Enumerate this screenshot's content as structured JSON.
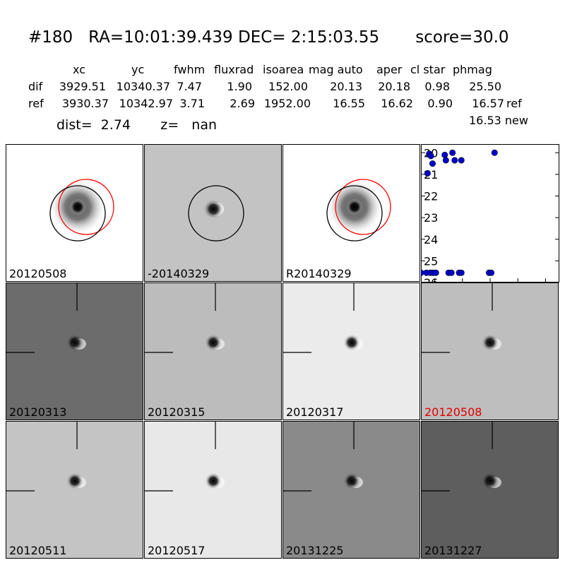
{
  "header": {
    "title": "#180   RA=10:01:39.439 DEC= 2:15:03.55       score=30.0",
    "columns": [
      "xc",
      "yc",
      "fwhm",
      "fluxrad",
      "isoarea",
      "mag auto",
      "aper",
      "cl star",
      "phmag"
    ],
    "rows": [
      {
        "name": "dif",
        "values": [
          "3929.51",
          "10340.37",
          "7.47",
          "1.90",
          "152.00",
          "20.13",
          "20.18",
          "0.98",
          "25.50"
        ],
        "note": ""
      },
      {
        "name": "ref",
        "values": [
          "3930.37",
          "10342.97",
          "3.71",
          "2.69",
          "1952.00",
          "16.55",
          "16.62",
          "0.90",
          "16.57"
        ],
        "note": "ref"
      }
    ],
    "extra_phmag": "16.53 new",
    "dist": "dist=  2.74       z=   nan"
  },
  "top_panels": [
    {
      "label": "20120508",
      "bg": "#ffffff",
      "circles": [
        "red",
        "black"
      ]
    },
    {
      "label": "-20140329",
      "bg": "#c3c3c3",
      "circles": [
        "black"
      ]
    },
    {
      "label": "R20140329",
      "bg": "#ffffff",
      "circles": [
        "red",
        "black"
      ]
    }
  ],
  "grid_panels": [
    {
      "label": "20120313",
      "bg": "#6c6c6c",
      "red": false
    },
    {
      "label": "20120315",
      "bg": "#bcbcbc",
      "red": false
    },
    {
      "label": "20120317",
      "bg": "#ebebeb",
      "red": false
    },
    {
      "label": "20120508",
      "bg": "#bebebe",
      "red": true
    },
    {
      "label": "20120511",
      "bg": "#c4c4c4",
      "red": false
    },
    {
      "label": "20120517",
      "bg": "#e8e8e8",
      "red": false
    },
    {
      "label": "20131225",
      "bg": "#8a8a8a",
      "red": false
    },
    {
      "label": "20131227",
      "bg": "#5e5e5e",
      "red": false
    }
  ],
  "chart_data": {
    "type": "scatter",
    "xlim": [
      -125,
      125
    ],
    "ylim": [
      26,
      19.6
    ],
    "xticks": [
      -100,
      -50,
      0,
      50,
      100
    ],
    "yticks": [
      20,
      21,
      22,
      23,
      24,
      25,
      26
    ],
    "color": "#0000cc",
    "points": [
      [
        -110,
        20.05
      ],
      [
        -107,
        20.15
      ],
      [
        -104,
        20.5
      ],
      [
        -113,
        20.95
      ],
      [
        -82,
        20.1
      ],
      [
        -80,
        20.35
      ],
      [
        -68,
        20.0
      ],
      [
        -64,
        20.35
      ],
      [
        -52,
        20.35
      ],
      [
        8,
        20.0
      ],
      [
        -125,
        25.55
      ],
      [
        -115,
        25.55
      ],
      [
        -108,
        25.55
      ],
      [
        -103,
        25.55
      ],
      [
        -98,
        25.55
      ],
      [
        -75,
        25.55
      ],
      [
        -70,
        25.55
      ],
      [
        -56,
        25.55
      ],
      [
        -52,
        25.55
      ],
      [
        -2,
        25.55
      ],
      [
        2,
        25.55
      ]
    ]
  }
}
